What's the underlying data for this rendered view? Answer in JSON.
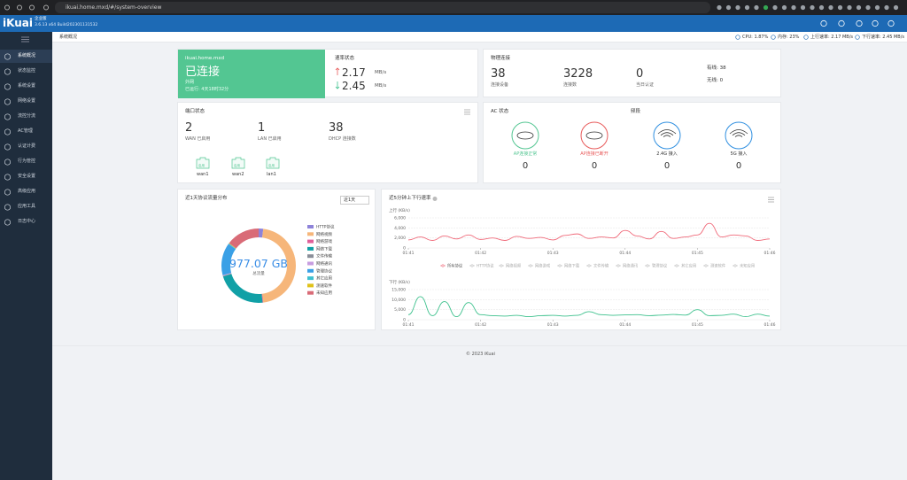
{
  "browser": {
    "url": "ikuai.home.mxd/#/system-overview"
  },
  "header": {
    "logo": "iKuai",
    "edition": "企业版",
    "version": "3.6.13 x64 Build202301131532"
  },
  "topbar": {
    "breadcrumb": "系统概况",
    "cpu": "CPU: 1.87%",
    "memory": "内存: 23%",
    "upload": "上行速率: 2.17 MB/s",
    "download": "下行速率: 2.45 MB/s"
  },
  "menu": [
    "系统概况",
    "状态监控",
    "系统设置",
    "网络设置",
    "流控分流",
    "AC管理",
    "认证计费",
    "行为管控",
    "安全设置",
    "高级应用",
    "应用工具",
    "日志中心"
  ],
  "wan": {
    "host": "ikuai.home.mxd",
    "status": "已连接",
    "type": "外网",
    "uptime": "已运行: 4天18时32分"
  },
  "rate": {
    "title": "速率状态",
    "up": "2.17",
    "down": "2.45",
    "unit": "MB/s"
  },
  "physical": {
    "title": "物理连接",
    "items": [
      {
        "value": "38",
        "label": "连接设备"
      },
      {
        "value": "3228",
        "label": "连接数"
      },
      {
        "value": "0",
        "label": "当日认证"
      }
    ],
    "wired": "有线: 38",
    "wireless": "无线: 0"
  },
  "ports": {
    "title": "端口状态",
    "stats": [
      {
        "value": "2",
        "label": "WAN 已启用"
      },
      {
        "value": "1",
        "label": "LAN 已启用"
      },
      {
        "value": "38",
        "label": "DHCP 连接数"
      }
    ],
    "list": [
      {
        "name": "wan1",
        "state": "启用"
      },
      {
        "name": "wan2",
        "state": "启用"
      },
      {
        "name": "lan1",
        "state": "启用"
      }
    ]
  },
  "ac": {
    "title": "AC 状态",
    "band_title": "频段",
    "items": [
      {
        "label": "AP连接正常",
        "value": "0"
      },
      {
        "label": "AP连接已断开",
        "value": "0"
      },
      {
        "label": "2.4G 接入",
        "value": "0"
      },
      {
        "label": "5G 接入",
        "value": "0"
      }
    ]
  },
  "traffic": {
    "title": "近1天协议流量分布",
    "range": "近1天",
    "total": "977.07 GB",
    "total_label": "总流量",
    "segments": [
      {
        "name": "HTTP协议",
        "color": "#8e83d9",
        "value": 2
      },
      {
        "name": "网络视频",
        "color": "#f6b67a",
        "value": 46
      },
      {
        "name": "网络游戏",
        "color": "#e0609a",
        "value": 0.3
      },
      {
        "name": "网络下载",
        "color": "#11a0a6",
        "value": 22
      },
      {
        "name": "文件传输",
        "color": "#8a8f99",
        "value": 0.3
      },
      {
        "name": "网络通讯",
        "color": "#c79de0",
        "value": 0.3
      },
      {
        "name": "管理协议",
        "color": "#3aa0e6",
        "value": 14
      },
      {
        "name": "其它应用",
        "color": "#3ec0d0",
        "value": 0.3
      },
      {
        "name": "测速软件",
        "color": "#e0c21a",
        "value": 0.2
      },
      {
        "name": "未知应用",
        "color": "#d96b77",
        "value": 14.6
      }
    ]
  },
  "speed": {
    "title": "近5分钟上下行速率",
    "legend": [
      "所有协议",
      "HTTP协议",
      "网络视频",
      "网络游戏",
      "网络下载",
      "文件传输",
      "网络通讯",
      "管理协议",
      "其它应用",
      "测速软件",
      "未知应用"
    ],
    "xticks": [
      "01:41",
      "01:42",
      "01:43",
      "01:44",
      "01:45",
      "01:46"
    ],
    "up": {
      "label": "上行 (KB/s)",
      "color": "#f06a7a",
      "ylim": [
        0,
        6000
      ],
      "yticks": [
        0,
        {
          "value": 2000,
          "label": "2,000"
        },
        {
          "value": 4000,
          "label": "4,000"
        },
        {
          "value": 6000,
          "label": "6,000"
        }
      ],
      "values": [
        1600,
        2200,
        1500,
        2400,
        1800,
        2600,
        1700,
        2000,
        1500,
        2300,
        1900,
        2100,
        1600,
        2500,
        2800,
        1900,
        2200,
        2000,
        3500,
        2400,
        1800,
        3300,
        1900,
        2200,
        2600,
        4900,
        2200,
        2600,
        2400,
        1500,
        1800
      ]
    },
    "down": {
      "label": "下行 (KB/s)",
      "color": "#3cc08c",
      "ylim": [
        0,
        15000
      ],
      "yticks": [
        0,
        {
          "value": 5000,
          "label": "5,000"
        },
        {
          "value": 10000,
          "label": "10,000"
        },
        {
          "value": 15000,
          "label": "15,000"
        }
      ],
      "values": [
        2500,
        11500,
        2000,
        9000,
        1500,
        8500,
        2500,
        2000,
        1800,
        2200,
        1500,
        2000,
        2200,
        1800,
        2200,
        4000,
        2500,
        2200,
        2400,
        2500,
        2000,
        2300,
        2600,
        2300,
        5000,
        2000,
        2200,
        2800,
        1500,
        2800,
        1800
      ]
    }
  },
  "footer": "© 2023 iKuai"
}
